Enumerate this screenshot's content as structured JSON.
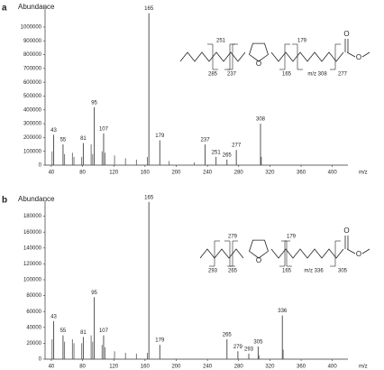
{
  "chart_data": [
    {
      "type": "bar",
      "panel": "a",
      "ylabel": "Abundance",
      "xlabel": "m/z",
      "x": [
        43,
        55,
        81,
        95,
        107,
        165,
        179,
        237,
        251,
        265,
        277,
        308
      ],
      "values": [
        220000,
        150000,
        160000,
        420000,
        230000,
        1100000,
        180000,
        150000,
        60000,
        40000,
        110000,
        300000
      ],
      "minor_x": [
        41,
        57,
        67,
        69,
        79,
        91,
        93,
        105,
        109,
        121,
        135,
        149,
        163,
        191,
        223,
        309
      ],
      "minor_values": [
        100000,
        80000,
        90000,
        60000,
        60000,
        150000,
        80000,
        100000,
        90000,
        70000,
        50000,
        40000,
        60000,
        30000,
        20000,
        60000
      ],
      "color": "#555555",
      "xlim": [
        32,
        420
      ],
      "xticks": [
        40,
        80,
        120,
        160,
        200,
        240,
        280,
        320,
        360,
        400
      ],
      "ylim": [
        0,
        1150000
      ],
      "yticks": [
        0,
        100000,
        200000,
        300000,
        400000,
        500000,
        600000,
        700000,
        800000,
        900000,
        1000000
      ],
      "structure_labels": [
        "251",
        "285",
        "237",
        "165",
        "179",
        "m/z 308",
        "277"
      ],
      "atoms": [
        "O",
        "O",
        "O"
      ]
    },
    {
      "type": "bar",
      "panel": "b",
      "ylabel": "Abundance",
      "xlabel": "m/z",
      "x": [
        43,
        55,
        81,
        95,
        107,
        165,
        179,
        265,
        279,
        293,
        305,
        336
      ],
      "values": [
        48000,
        30000,
        28000,
        78000,
        30000,
        198000,
        18000,
        25000,
        10000,
        7000,
        16000,
        55000
      ],
      "minor_x": [
        41,
        57,
        67,
        69,
        79,
        91,
        93,
        105,
        109,
        121,
        135,
        149,
        163,
        306,
        337
      ],
      "minor_values": [
        25000,
        22000,
        25000,
        20000,
        20000,
        30000,
        22000,
        18000,
        15000,
        10000,
        8000,
        7000,
        8000,
        5000,
        12000
      ],
      "color": "#555555",
      "xlim": [
        32,
        420
      ],
      "xticks": [
        40,
        80,
        120,
        160,
        200,
        240,
        280,
        320,
        360,
        400
      ],
      "ylim": [
        0,
        200000
      ],
      "yticks": [
        0,
        20000,
        40000,
        60000,
        80000,
        100000,
        120000,
        140000,
        160000,
        180000
      ],
      "structure_labels": [
        "279",
        "293",
        "265",
        "165",
        "179",
        "m/z 336",
        "305"
      ],
      "atoms": [
        "O",
        "O",
        "O"
      ]
    }
  ]
}
